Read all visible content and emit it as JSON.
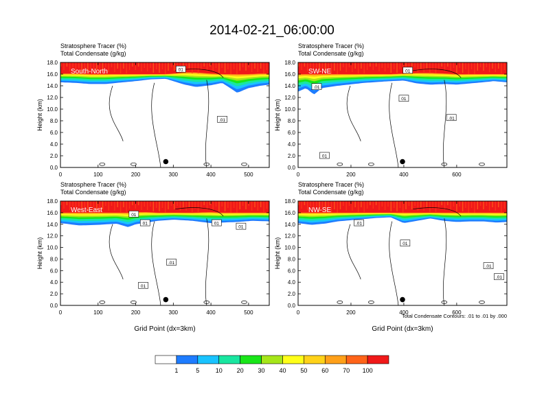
{
  "title": "2014-02-21_06:00:00",
  "panel_subtitle_line1": "Stratosphere Tracer   (%)",
  "panel_subtitle_line2": "Total Condensate   (g/kg)",
  "contour_note": "Total Condensate Contours: .01 to .01 by .000",
  "colors": {
    "levels": [
      "#ffffff",
      "#1e7cff",
      "#19c3ff",
      "#19e6a0",
      "#19e619",
      "#a6e619",
      "#ffff19",
      "#ffd219",
      "#ffa019",
      "#ff6419",
      "#f01919"
    ],
    "contour": "#000000"
  },
  "chart_data": [
    {
      "type": "heatmap",
      "panel_label": "South-North",
      "subtitle": [
        "Stratosphere Tracer   (%)",
        "Total Condensate   (g/kg)"
      ],
      "ylabel": "Height (km)",
      "xlabel": "",
      "xlim": [
        0,
        555
      ],
      "ylim": [
        0,
        18
      ],
      "xticks": [
        "0",
        "100",
        "200",
        "300",
        "400",
        "500"
      ],
      "xtick_values": [
        0,
        100,
        200,
        300,
        400,
        500
      ],
      "yticks": [
        "0.0",
        "2.0",
        "4.0",
        "6.0",
        "8.0",
        "10.0",
        "12.0",
        "14.0",
        "16.0",
        "18.0"
      ],
      "tracer_profile": {
        "x": [
          0,
          40,
          80,
          120,
          150,
          200,
          240,
          280,
          300,
          330,
          360,
          400,
          430,
          470,
          500,
          530,
          555
        ],
        "base_km": [
          14.6,
          14.5,
          14.3,
          14.3,
          14.5,
          14.8,
          15.1,
          15.2,
          14.8,
          14.2,
          13.8,
          14.1,
          14.5,
          12.8,
          13.6,
          14.0,
          14.2
        ],
        "top_km": [
          16.1,
          16.1,
          16.0,
          16.0,
          16.0,
          16.0,
          16.0,
          16.0,
          16.1,
          16.3,
          16.3,
          16.1,
          16.0,
          16.0,
          16.0,
          16.1,
          16.1
        ]
      },
      "contour_labels": [
        {
          "text": "01",
          "x": 320,
          "y": 16.8
        },
        {
          "text": ".01",
          "x": 430,
          "y": 8.2
        }
      ],
      "location_marker": {
        "x": 280,
        "y": 1.0
      }
    },
    {
      "type": "heatmap",
      "panel_label": "SW-NE",
      "subtitle": [
        "Stratosphere Tracer   (%)",
        "Total Condensate   (g/kg)"
      ],
      "ylabel": "Height (km)",
      "xlabel": "",
      "xlim": [
        0,
        790
      ],
      "ylim": [
        0,
        18
      ],
      "xticks": [
        "0",
        "200",
        "400",
        "600"
      ],
      "xtick_values": [
        0,
        200,
        400,
        600
      ],
      "yticks": [
        "0.0",
        "2.0",
        "4.0",
        "6.0",
        "8.0",
        "10.0",
        "12.0",
        "14.0",
        "16.0",
        "18.0"
      ],
      "tracer_profile": {
        "x": [
          0,
          30,
          60,
          90,
          150,
          250,
          350,
          400,
          450,
          500,
          560,
          600,
          650,
          700,
          740,
          790
        ],
        "base_km": [
          13.0,
          13.6,
          12.5,
          13.6,
          14.0,
          14.5,
          14.8,
          14.9,
          14.4,
          14.2,
          14.3,
          14.2,
          14.4,
          14.6,
          14.8,
          14.6
        ],
        "top_km": [
          16.0,
          16.0,
          16.0,
          16.0,
          16.0,
          16.0,
          16.0,
          16.1,
          16.2,
          16.2,
          16.1,
          16.0,
          16.0,
          16.0,
          16.0,
          16.0
        ]
      },
      "contour_labels": [
        {
          "text": "01",
          "x": 415,
          "y": 16.6
        },
        {
          "text": ".01",
          "x": 70,
          "y": 13.8
        },
        {
          "text": "01",
          "x": 400,
          "y": 11.8
        },
        {
          "text": ".01",
          "x": 580,
          "y": 8.5
        },
        {
          "text": "01",
          "x": 100,
          "y": 2.0
        }
      ],
      "location_marker": {
        "x": 395,
        "y": 1.0
      }
    },
    {
      "type": "heatmap",
      "panel_label": "West-East",
      "subtitle": [
        "Stratosphere Tracer   (%)",
        "Total Condensate   (g/kg)"
      ],
      "ylabel": "Height (km)",
      "xlabel": "Grid Point (dx=3km)",
      "xlim": [
        0,
        555
      ],
      "ylim": [
        0,
        18
      ],
      "xticks": [
        "0",
        "100",
        "200",
        "300",
        "400",
        "500"
      ],
      "xtick_values": [
        0,
        100,
        200,
        300,
        400,
        500
      ],
      "yticks": [
        "0.0",
        "2.0",
        "4.0",
        "6.0",
        "8.0",
        "10.0",
        "12.0",
        "14.0",
        "16.0",
        "18.0"
      ],
      "tracer_profile": {
        "x": [
          0,
          50,
          100,
          150,
          180,
          200,
          230,
          260,
          300,
          350,
          400,
          430,
          470,
          510,
          555
        ],
        "base_km": [
          14.2,
          13.8,
          13.9,
          14.1,
          13.5,
          14.0,
          14.3,
          14.6,
          14.8,
          14.6,
          14.2,
          14.3,
          14.4,
          14.6,
          14.5
        ],
        "top_km": [
          16.0,
          16.0,
          16.0,
          16.0,
          16.0,
          16.1,
          16.1,
          16.0,
          16.0,
          16.0,
          16.1,
          16.0,
          16.0,
          16.0,
          16.0
        ]
      },
      "contour_labels": [
        {
          "text": "01",
          "x": 195,
          "y": 15.7
        },
        {
          "text": "01",
          "x": 225,
          "y": 14.2
        },
        {
          "text": "01",
          "x": 415,
          "y": 14.2
        },
        {
          "text": "01",
          "x": 480,
          "y": 13.6
        },
        {
          "text": ".01",
          "x": 295,
          "y": 7.4
        },
        {
          "text": "01",
          "x": 220,
          "y": 3.4
        }
      ],
      "location_marker": {
        "x": 280,
        "y": 1.0
      }
    },
    {
      "type": "heatmap",
      "panel_label": "NW-SE",
      "subtitle": [
        "Stratosphere Tracer   (%)",
        "Total Condensate   (g/kg)"
      ],
      "ylabel": "Height (km)",
      "xlabel": "Grid Point (dx=3km)",
      "xlim": [
        0,
        790
      ],
      "ylim": [
        0,
        18
      ],
      "xticks": [
        "0",
        "200",
        "400",
        "600"
      ],
      "xtick_values": [
        0,
        200,
        400,
        600
      ],
      "yticks": [
        "0.0",
        "2.0",
        "4.0",
        "6.0",
        "8.0",
        "10.0",
        "12.0",
        "14.0",
        "16.0",
        "18.0"
      ],
      "tracer_profile": {
        "x": [
          0,
          50,
          100,
          150,
          200,
          250,
          300,
          350,
          400,
          450,
          500,
          550,
          600,
          650,
          700,
          750,
          790
        ],
        "base_km": [
          14.2,
          13.9,
          14.1,
          14.5,
          14.7,
          14.9,
          15.1,
          15.2,
          14.2,
          14.6,
          15.0,
          14.6,
          14.4,
          14.5,
          14.5,
          14.3,
          14.4
        ],
        "top_km": [
          16.0,
          16.0,
          16.0,
          16.0,
          16.0,
          16.0,
          16.0,
          16.0,
          16.0,
          16.0,
          16.0,
          16.0,
          16.0,
          16.0,
          16.0,
          16.0,
          16.0
        ]
      },
      "contour_labels": [
        {
          "text": ".01",
          "x": 230,
          "y": 14.2
        },
        {
          "text": "01",
          "x": 405,
          "y": 10.7
        },
        {
          "text": ".01",
          "x": 720,
          "y": 6.8
        },
        {
          "text": ".01",
          "x": 760,
          "y": 4.9
        }
      ],
      "location_marker": {
        "x": 395,
        "y": 1.0
      }
    }
  ],
  "colorbar": {
    "labels": [
      "1",
      "5",
      "10",
      "20",
      "30",
      "40",
      "50",
      "60",
      "70",
      "100"
    ]
  }
}
